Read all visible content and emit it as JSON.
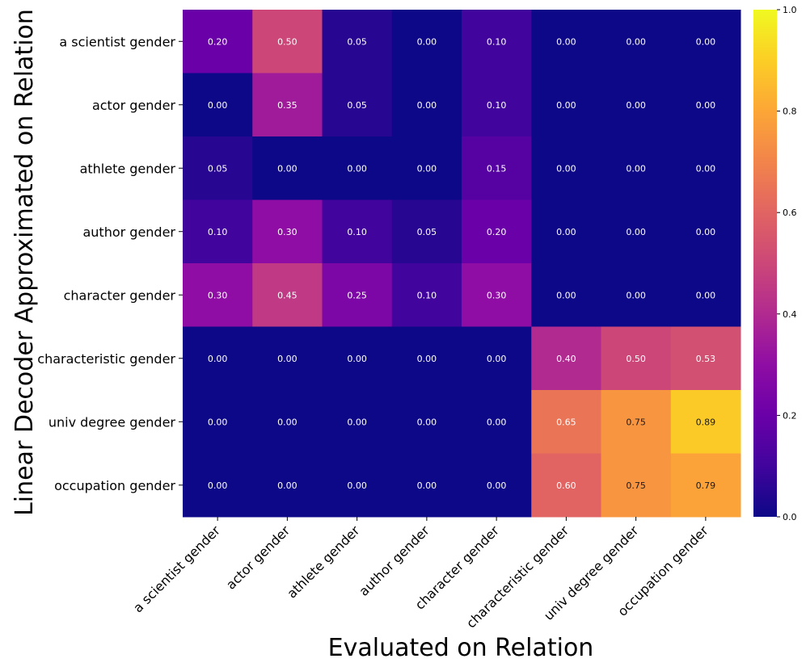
{
  "chart_data": {
    "type": "heatmap",
    "xlabel": "Evaluated on Relation",
    "ylabel": "Linear Decoder Approximated on Relation",
    "x_categories": [
      "a scientist gender",
      "actor gender",
      "athlete gender",
      "author gender",
      "character gender",
      "characteristic gender",
      "univ degree gender",
      "occupation gender"
    ],
    "y_categories": [
      "a scientist gender",
      "actor gender",
      "athlete gender",
      "author gender",
      "character gender",
      "characteristic gender",
      "univ degree gender",
      "occupation gender"
    ],
    "values": [
      [
        0.2,
        0.5,
        0.05,
        0.0,
        0.1,
        0.0,
        0.0,
        0.0
      ],
      [
        0.0,
        0.35,
        0.05,
        0.0,
        0.1,
        0.0,
        0.0,
        0.0
      ],
      [
        0.05,
        0.0,
        0.0,
        0.0,
        0.15,
        0.0,
        0.0,
        0.0
      ],
      [
        0.1,
        0.3,
        0.1,
        0.05,
        0.2,
        0.0,
        0.0,
        0.0
      ],
      [
        0.3,
        0.45,
        0.25,
        0.1,
        0.3,
        0.0,
        0.0,
        0.0
      ],
      [
        0.0,
        0.0,
        0.0,
        0.0,
        0.0,
        0.4,
        0.5,
        0.53
      ],
      [
        0.0,
        0.0,
        0.0,
        0.0,
        0.0,
        0.65,
        0.75,
        0.89
      ],
      [
        0.0,
        0.0,
        0.0,
        0.0,
        0.0,
        0.6,
        0.75,
        0.79
      ]
    ],
    "colormap": "plasma",
    "vmin": 0.0,
    "vmax": 1.0,
    "colorbar_ticks": [
      "0.0",
      "0.2",
      "0.4",
      "0.6",
      "0.8",
      "1.0"
    ],
    "annotations": true,
    "grid": false,
    "legend": "colorbar-right"
  }
}
